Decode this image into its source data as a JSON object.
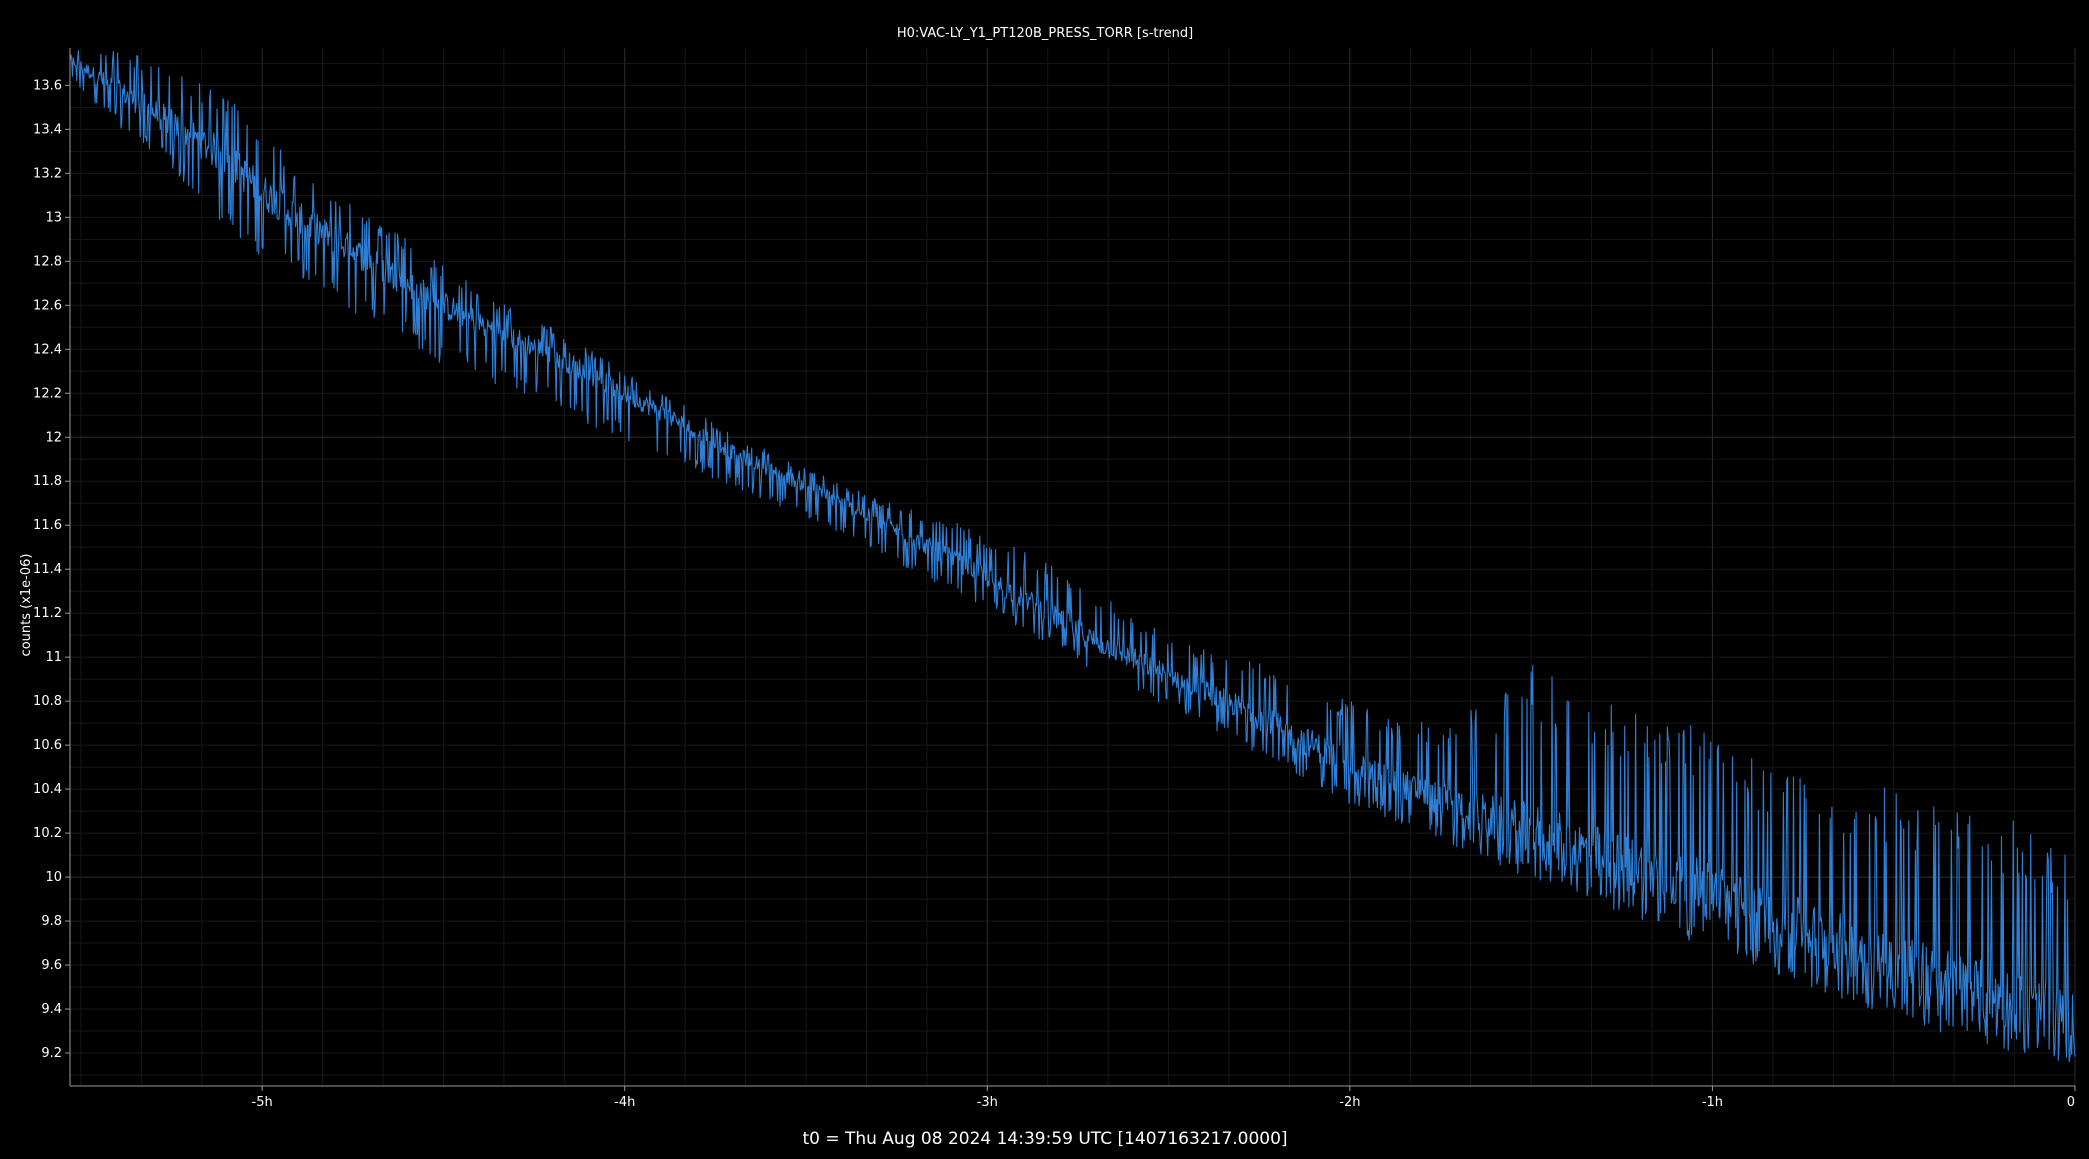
{
  "chart_data": {
    "type": "line",
    "title": "H0:VAC-LY_Y1_PT120B_PRESS_TORR [s-trend]",
    "ylabel": "counts (x1e-06)",
    "xlabel": "",
    "caption": "t0 = Thu Aug 08 2024 14:39:59 UTC [1407163217.0000]",
    "xlim": [
      -5.53,
      0
    ],
    "ylim": [
      9.05,
      13.77
    ],
    "x_unit": "hours",
    "x_ticks": [
      {
        "value": -5,
        "label": "-5h"
      },
      {
        "value": -4,
        "label": "-4h"
      },
      {
        "value": -3,
        "label": "-3h"
      },
      {
        "value": -2,
        "label": "-2h"
      },
      {
        "value": -1,
        "label": "-1h"
      },
      {
        "value": 0,
        "label": "0"
      }
    ],
    "y_ticks": [
      {
        "value": 9.2,
        "label": "9.2"
      },
      {
        "value": 9.4,
        "label": "9.4"
      },
      {
        "value": 9.6,
        "label": "9.6"
      },
      {
        "value": 9.8,
        "label": "9.8"
      },
      {
        "value": 10,
        "label": "10"
      },
      {
        "value": 10.2,
        "label": "10.2"
      },
      {
        "value": 10.4,
        "label": "10.4"
      },
      {
        "value": 10.6,
        "label": "10.6"
      },
      {
        "value": 10.8,
        "label": "10.8"
      },
      {
        "value": 11,
        "label": "11"
      },
      {
        "value": 11.2,
        "label": "11.2"
      },
      {
        "value": 11.4,
        "label": "11.4"
      },
      {
        "value": 11.6,
        "label": "11.6"
      },
      {
        "value": 11.8,
        "label": "11.8"
      },
      {
        "value": 12,
        "label": "12"
      },
      {
        "value": 12.2,
        "label": "12.2"
      },
      {
        "value": 12.4,
        "label": "12.4"
      },
      {
        "value": 12.6,
        "label": "12.6"
      },
      {
        "value": 12.8,
        "label": "12.8"
      },
      {
        "value": 13,
        "label": "13"
      },
      {
        "value": 13.2,
        "label": "13.2"
      },
      {
        "value": 13.4,
        "label": "13.4"
      },
      {
        "value": 13.6,
        "label": "13.6"
      }
    ],
    "grid": true,
    "legend": "none",
    "colors": {
      "series": "#2f7fd6",
      "background": "#000000",
      "grid_major": "#2a2a2a",
      "grid_minor": "#161616",
      "axis": "#9a9a9a",
      "text": "#ffffff"
    },
    "series": [
      {
        "color": "#2f7fd6",
        "x": [
          -5.53,
          -5.4,
          -5.25,
          -5.1,
          -5.0,
          -4.9,
          -4.75,
          -4.6,
          -4.5,
          -4.35,
          -4.2,
          -4.0,
          -3.85,
          -3.7,
          -3.5,
          -3.3,
          -3.1,
          -3.0,
          -2.85,
          -2.7,
          -2.5,
          -2.3,
          -2.1,
          -2.0,
          -1.85,
          -1.7,
          -1.5,
          -1.35,
          -1.2,
          -1.0,
          -0.85,
          -0.7,
          -0.5,
          -0.3,
          -0.15,
          0.0
        ],
        "mean": [
          13.72,
          13.58,
          13.43,
          13.27,
          13.12,
          13.0,
          12.85,
          12.7,
          12.6,
          12.48,
          12.38,
          12.2,
          12.07,
          11.93,
          11.78,
          11.62,
          11.45,
          11.36,
          11.22,
          11.07,
          10.92,
          10.77,
          10.6,
          10.52,
          10.42,
          10.32,
          10.2,
          10.12,
          10.04,
          9.93,
          9.83,
          9.73,
          9.62,
          9.5,
          9.42,
          9.33
        ],
        "low": [
          13.62,
          13.42,
          13.22,
          12.95,
          12.82,
          12.72,
          12.57,
          12.44,
          12.32,
          12.24,
          12.14,
          11.98,
          11.88,
          11.77,
          11.63,
          11.47,
          11.3,
          11.22,
          11.07,
          10.92,
          10.76,
          10.6,
          10.42,
          10.33,
          10.23,
          10.13,
          9.99,
          9.9,
          9.8,
          9.67,
          9.58,
          9.47,
          9.37,
          9.25,
          9.2,
          9.15
        ],
        "high": [
          13.77,
          13.77,
          13.7,
          13.55,
          13.42,
          13.22,
          13.06,
          12.9,
          12.78,
          12.62,
          12.5,
          12.3,
          12.16,
          12.01,
          11.86,
          11.72,
          11.62,
          11.55,
          11.45,
          11.3,
          11.1,
          11.0,
          10.9,
          10.8,
          10.72,
          10.72,
          10.98,
          10.83,
          10.78,
          10.65,
          10.52,
          10.45,
          10.4,
          10.3,
          10.25,
          10.17
        ]
      }
    ]
  }
}
